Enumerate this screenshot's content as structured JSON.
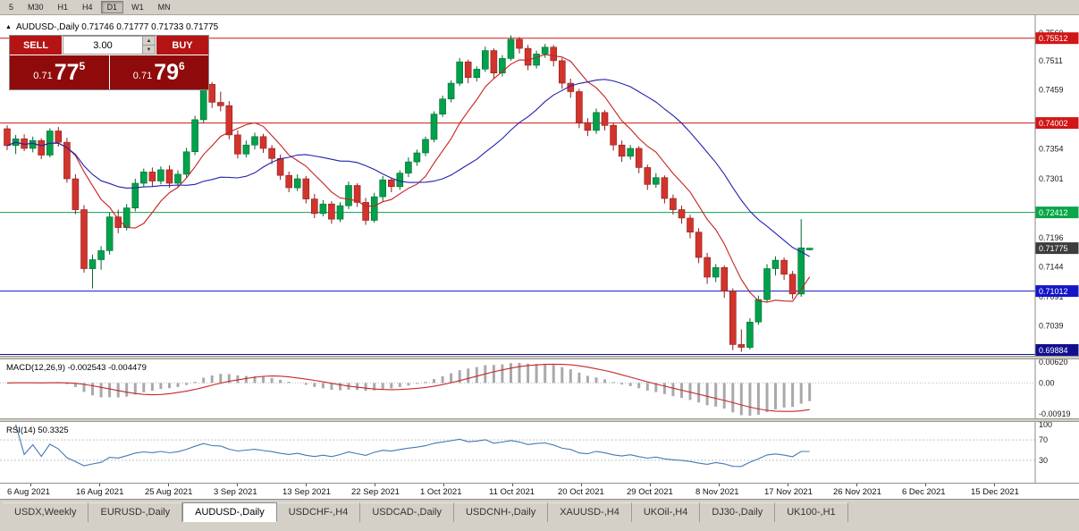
{
  "toolbar": {
    "timeframes": [
      {
        "label": "5",
        "active": false
      },
      {
        "label": "M30",
        "active": false
      },
      {
        "label": "H1",
        "active": false
      },
      {
        "label": "H4",
        "active": false
      },
      {
        "label": "D1",
        "active": true
      },
      {
        "label": "W1",
        "active": false
      },
      {
        "label": "MN",
        "active": false
      }
    ]
  },
  "chart": {
    "title_text": "AUDUSD-,Daily  0.71746 0.71777 0.71733 0.71775"
  },
  "trade_widget": {
    "sell_label": "SELL",
    "buy_label": "BUY",
    "volume": "3.00",
    "sell_price": {
      "prefix": "0.71",
      "big": "77",
      "sup": "5"
    },
    "buy_price": {
      "prefix": "0.71",
      "big": "79",
      "sup": "6"
    }
  },
  "chart_data": {
    "type": "candlestick",
    "symbol": "AUDUSD-",
    "timeframe": "Daily",
    "current_ohlc": {
      "open": 0.71746,
      "high": 0.71777,
      "low": 0.71733,
      "close": 0.71775
    },
    "ylim": [
      0.6986,
      0.7592
    ],
    "bull_color": "#00a14b",
    "bull_border": "#00692f",
    "bear_color": "#d1342c",
    "bear_border": "#8f1d1d",
    "candles": [
      [
        0.739,
        0.7396,
        0.7352,
        0.736
      ],
      [
        0.736,
        0.7379,
        0.7345,
        0.7372
      ],
      [
        0.7372,
        0.738,
        0.735,
        0.7355
      ],
      [
        0.7355,
        0.7376,
        0.7348,
        0.7369
      ],
      [
        0.7369,
        0.7373,
        0.7336,
        0.7343
      ],
      [
        0.7343,
        0.7391,
        0.7339,
        0.7386
      ],
      [
        0.7386,
        0.7393,
        0.7358,
        0.7366
      ],
      [
        0.7366,
        0.7374,
        0.7294,
        0.7301
      ],
      [
        0.7301,
        0.7309,
        0.7238,
        0.7246
      ],
      [
        0.7246,
        0.7254,
        0.7134,
        0.7141
      ],
      [
        0.7141,
        0.7166,
        0.7106,
        0.7157
      ],
      [
        0.7157,
        0.7181,
        0.7139,
        0.7173
      ],
      [
        0.7173,
        0.7241,
        0.7166,
        0.7233
      ],
      [
        0.7233,
        0.7246,
        0.7204,
        0.7214
      ],
      [
        0.7214,
        0.7256,
        0.7209,
        0.7249
      ],
      [
        0.7249,
        0.7301,
        0.7243,
        0.7293
      ],
      [
        0.7293,
        0.7319,
        0.7286,
        0.7313
      ],
      [
        0.7313,
        0.7321,
        0.7287,
        0.7297
      ],
      [
        0.7297,
        0.7323,
        0.7291,
        0.7317
      ],
      [
        0.7317,
        0.7325,
        0.7285,
        0.7293
      ],
      [
        0.7293,
        0.7316,
        0.7287,
        0.7309
      ],
      [
        0.7309,
        0.7356,
        0.7303,
        0.7349
      ],
      [
        0.7349,
        0.7413,
        0.7343,
        0.7406
      ],
      [
        0.7406,
        0.7479,
        0.7401,
        0.7469
      ],
      [
        0.7469,
        0.7473,
        0.7427,
        0.7437
      ],
      [
        0.7437,
        0.7456,
        0.7421,
        0.7431
      ],
      [
        0.7431,
        0.7439,
        0.7371,
        0.7379
      ],
      [
        0.7379,
        0.7387,
        0.7337,
        0.7345
      ],
      [
        0.7345,
        0.7369,
        0.7339,
        0.7361
      ],
      [
        0.7361,
        0.7383,
        0.7353,
        0.7376
      ],
      [
        0.7376,
        0.7381,
        0.7347,
        0.7355
      ],
      [
        0.7355,
        0.7361,
        0.7327,
        0.7337
      ],
      [
        0.7337,
        0.7344,
        0.7299,
        0.7307
      ],
      [
        0.7307,
        0.7314,
        0.7277,
        0.7285
      ],
      [
        0.7285,
        0.7309,
        0.7279,
        0.7301
      ],
      [
        0.7301,
        0.7306,
        0.7257,
        0.7265
      ],
      [
        0.7265,
        0.7274,
        0.7231,
        0.7239
      ],
      [
        0.7239,
        0.7263,
        0.7234,
        0.7256
      ],
      [
        0.7256,
        0.7261,
        0.7221,
        0.7229
      ],
      [
        0.7229,
        0.7259,
        0.7224,
        0.7253
      ],
      [
        0.7253,
        0.7296,
        0.7247,
        0.7289
      ],
      [
        0.7289,
        0.7293,
        0.7251,
        0.7259
      ],
      [
        0.7259,
        0.7267,
        0.7219,
        0.7227
      ],
      [
        0.7227,
        0.7276,
        0.7223,
        0.7269
      ],
      [
        0.7269,
        0.7306,
        0.7261,
        0.7299
      ],
      [
        0.7299,
        0.7303,
        0.7277,
        0.7287
      ],
      [
        0.7287,
        0.7316,
        0.7281,
        0.7311
      ],
      [
        0.7311,
        0.7339,
        0.7304,
        0.7331
      ],
      [
        0.7331,
        0.7353,
        0.7324,
        0.7347
      ],
      [
        0.7347,
        0.7376,
        0.7341,
        0.7371
      ],
      [
        0.7371,
        0.7421,
        0.7366,
        0.7416
      ],
      [
        0.7416,
        0.7449,
        0.7411,
        0.7443
      ],
      [
        0.7443,
        0.7476,
        0.7437,
        0.7471
      ],
      [
        0.7471,
        0.7516,
        0.7466,
        0.7509
      ],
      [
        0.7509,
        0.7513,
        0.7471,
        0.7481
      ],
      [
        0.7481,
        0.7501,
        0.7474,
        0.7496
      ],
      [
        0.7496,
        0.7536,
        0.7491,
        0.7529
      ],
      [
        0.7529,
        0.7533,
        0.7479,
        0.7489
      ],
      [
        0.7489,
        0.7521,
        0.7483,
        0.7515
      ],
      [
        0.7515,
        0.7556,
        0.7511,
        0.7549
      ],
      [
        0.7549,
        0.7553,
        0.7524,
        0.7533
      ],
      [
        0.7533,
        0.7539,
        0.7494,
        0.7503
      ],
      [
        0.7503,
        0.7529,
        0.7497,
        0.7523
      ],
      [
        0.7523,
        0.7541,
        0.7516,
        0.7535
      ],
      [
        0.7535,
        0.7539,
        0.7501,
        0.7511
      ],
      [
        0.7511,
        0.7516,
        0.7461,
        0.7471
      ],
      [
        0.7471,
        0.7479,
        0.7445,
        0.7456
      ],
      [
        0.7456,
        0.7461,
        0.7391,
        0.7401
      ],
      [
        0.7401,
        0.7409,
        0.7377,
        0.7387
      ],
      [
        0.7387,
        0.7426,
        0.7381,
        0.7419
      ],
      [
        0.7419,
        0.7423,
        0.7387,
        0.7396
      ],
      [
        0.7396,
        0.7401,
        0.7351,
        0.7361
      ],
      [
        0.7361,
        0.7369,
        0.7331,
        0.7341
      ],
      [
        0.7341,
        0.7361,
        0.7335,
        0.7355
      ],
      [
        0.7355,
        0.7359,
        0.7311,
        0.7321
      ],
      [
        0.7321,
        0.7326,
        0.7281,
        0.7291
      ],
      [
        0.7291,
        0.7311,
        0.7285,
        0.7303
      ],
      [
        0.7303,
        0.7307,
        0.7257,
        0.7266
      ],
      [
        0.7266,
        0.7273,
        0.7237,
        0.7246
      ],
      [
        0.7246,
        0.7253,
        0.7221,
        0.7231
      ],
      [
        0.7231,
        0.7237,
        0.7195,
        0.7206
      ],
      [
        0.7206,
        0.7213,
        0.7151,
        0.7161
      ],
      [
        0.7161,
        0.7169,
        0.7114,
        0.7126
      ],
      [
        0.7126,
        0.7149,
        0.7117,
        0.7143
      ],
      [
        0.7143,
        0.7147,
        0.7089,
        0.7101
      ],
      [
        0.7101,
        0.7106,
        0.6996,
        0.7006
      ],
      [
        0.7006,
        0.7033,
        0.6993,
        0.7001
      ],
      [
        0.7001,
        0.7053,
        0.6997,
        0.7046
      ],
      [
        0.7046,
        0.7093,
        0.7041,
        0.7086
      ],
      [
        0.7086,
        0.7149,
        0.7081,
        0.7141
      ],
      [
        0.7141,
        0.7163,
        0.7129,
        0.7156
      ],
      [
        0.7156,
        0.7161,
        0.7121,
        0.7131
      ],
      [
        0.7131,
        0.7137,
        0.7087,
        0.7096
      ],
      [
        0.7096,
        0.7229,
        0.7091,
        0.7178
      ],
      [
        0.71746,
        0.71777,
        0.71733,
        0.71775
      ]
    ],
    "x_labels": [
      "6 Aug 2021",
      "16 Aug 2021",
      "25 Aug 2021",
      "3 Sep 2021",
      "13 Sep 2021",
      "22 Sep 2021",
      "1 Oct 2021",
      "11 Oct 2021",
      "20 Oct 2021",
      "29 Oct 2021",
      "8 Nov 2021",
      "17 Nov 2021",
      "26 Nov 2021",
      "6 Dec 2021",
      "15 Dec 2021"
    ],
    "axis_labels": [
      "0.7560",
      "0.7511",
      "0.7459",
      "0.7354",
      "0.7301",
      "0.7196",
      "0.7144",
      "0.7091",
      "0.7039"
    ],
    "hlines": [
      {
        "value": 0.75512,
        "label": "0.75512",
        "color": "#d01616",
        "text": "#ffffff"
      },
      {
        "value": 0.74002,
        "label": "0.74002",
        "color": "#d01616",
        "text": "#ffffff"
      },
      {
        "value": 0.72412,
        "label": "0.72412",
        "color": "#09a64a",
        "text": "#ffffff"
      },
      {
        "value": 0.71012,
        "label": "0.71012",
        "color": "#1515c8",
        "text": "#ffffff"
      },
      {
        "value": 0.69884,
        "label": "0.69884",
        "color": "#10108e",
        "text": "#ffffff"
      }
    ],
    "current_price": {
      "value": 0.71775,
      "label": "0.71775",
      "color": "#3d3d3d",
      "text": "#ffffff"
    },
    "moving_averages": [
      {
        "name": "fast-ma",
        "period": 8,
        "color": "#c42222"
      },
      {
        "name": "slow-ma",
        "period": 21,
        "color": "#2222ae"
      }
    ]
  },
  "macd_panel": {
    "label": "MACD(12,26,9)",
    "values": "-0.002543 -0.004479",
    "params": {
      "fast": 12,
      "slow": 26,
      "signal": 9
    },
    "axis_labels": [
      {
        "text": "0.00620",
        "value": 0.0062
      },
      {
        "text": "0.00",
        "value": 0
      },
      {
        "text": "-0.00919",
        "value": -0.00919
      }
    ],
    "histogram_color": "#a9a9a9",
    "signal_color": "#c62828"
  },
  "rsi_panel": {
    "label": "RSI(14)",
    "value": "50.3325",
    "period": 14,
    "axis_labels": [
      {
        "text": "100",
        "value": 100
      },
      {
        "text": "70",
        "value": 70
      },
      {
        "text": "30",
        "value": 30
      }
    ],
    "levels": [
      70,
      30
    ],
    "line_color": "#4579b2"
  },
  "tabs": [
    {
      "label": "USDX,Weekly",
      "active": false
    },
    {
      "label": "EURUSD-,Daily",
      "active": false
    },
    {
      "label": "AUDUSD-,Daily",
      "active": true
    },
    {
      "label": "USDCHF-,H4",
      "active": false
    },
    {
      "label": "USDCAD-,Daily",
      "active": false
    },
    {
      "label": "USDCNH-,Daily",
      "active": false
    },
    {
      "label": "XAUUSD-,H4",
      "active": false
    },
    {
      "label": "UKOil-,H4",
      "active": false
    },
    {
      "label": "DJ30-,Daily",
      "active": false
    },
    {
      "label": "UK100-,H1",
      "active": false
    }
  ]
}
